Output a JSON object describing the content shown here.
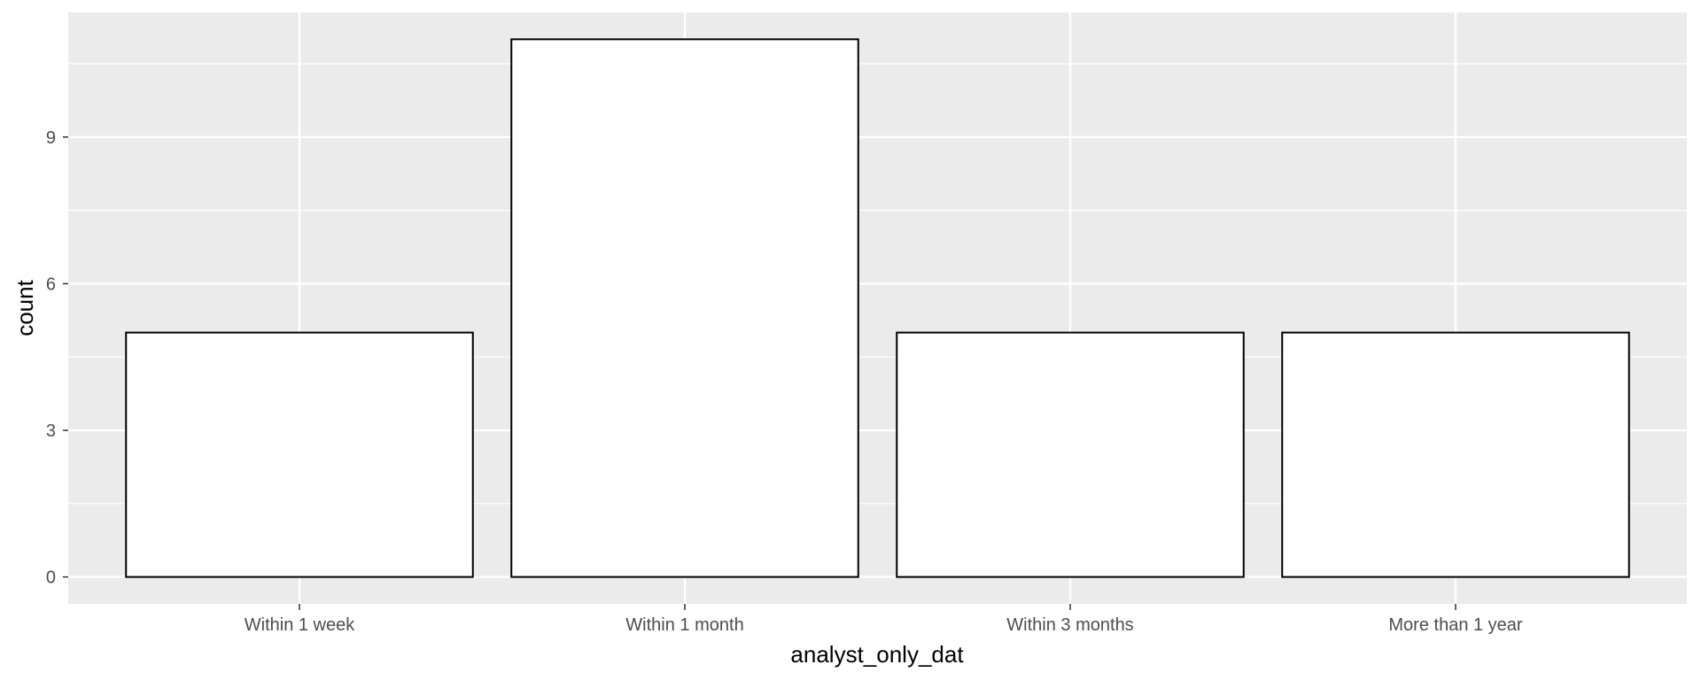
{
  "chart_data": {
    "type": "bar",
    "title": "",
    "xlabel": "analyst_only_dat",
    "ylabel": "count",
    "categories": [
      "Within 1 week",
      "Within 1 month",
      "Within 3 months",
      "More than 1 year"
    ],
    "values": [
      5,
      11,
      5,
      5
    ],
    "ylim": [
      -0.55,
      11.55
    ],
    "yticks": [
      0,
      3,
      6,
      9
    ],
    "y_tick_labels": [
      "0",
      "3",
      "6",
      "9"
    ],
    "grid": true,
    "legend": "none",
    "colors": {
      "panel": "#EBEBEB",
      "grid_major": "#FFFFFF",
      "bar_fill": "#FFFFFF",
      "bar_stroke": "#000000",
      "axis_text": "#4D4D4D",
      "axis_title": "#000000",
      "tick": "#333333"
    }
  }
}
